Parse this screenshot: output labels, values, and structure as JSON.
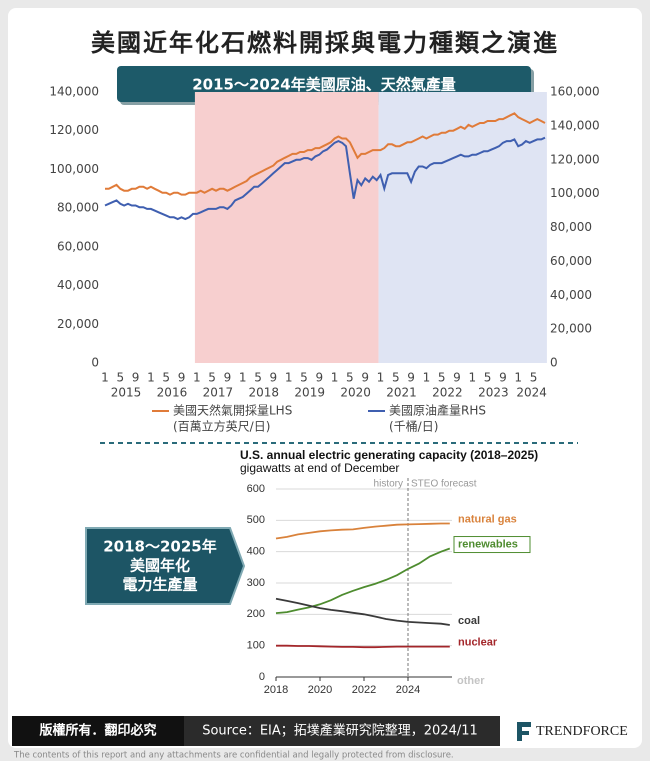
{
  "title": "美國近年化石燃料開採與電力種類之演進",
  "banner": "2015～2024年美國原油、天然氣產量",
  "side_banner": [
    "2018～2025年",
    "美國年化",
    "電力生產量"
  ],
  "chart_data": [
    {
      "type": "line",
      "x": [
        "2015-01",
        "2015-02",
        "2015-03",
        "2015-04",
        "2015-05",
        "2015-06",
        "2015-07",
        "2015-08",
        "2015-09",
        "2015-10",
        "2015-11",
        "2015-12",
        "2016-01",
        "2016-02",
        "2016-03",
        "2016-04",
        "2016-05",
        "2016-06",
        "2016-07",
        "2016-08",
        "2016-09",
        "2016-10",
        "2016-11",
        "2016-12",
        "2017-01",
        "2017-02",
        "2017-03",
        "2017-04",
        "2017-05",
        "2017-06",
        "2017-07",
        "2017-08",
        "2017-09",
        "2017-10",
        "2017-11",
        "2017-12",
        "2018-01",
        "2018-02",
        "2018-03",
        "2018-04",
        "2018-05",
        "2018-06",
        "2018-07",
        "2018-08",
        "2018-09",
        "2018-10",
        "2018-11",
        "2018-12",
        "2019-01",
        "2019-02",
        "2019-03",
        "2019-04",
        "2019-05",
        "2019-06",
        "2019-07",
        "2019-08",
        "2019-09",
        "2019-10",
        "2019-11",
        "2019-12",
        "2020-01",
        "2020-02",
        "2020-03",
        "2020-04",
        "2020-05",
        "2020-06",
        "2020-07",
        "2020-08",
        "2020-09",
        "2020-10",
        "2020-11",
        "2020-12",
        "2021-01",
        "2021-02",
        "2021-03",
        "2021-04",
        "2021-05",
        "2021-06",
        "2021-07",
        "2021-08",
        "2021-09",
        "2021-10",
        "2021-11",
        "2021-12",
        "2022-01",
        "2022-02",
        "2022-03",
        "2022-04",
        "2022-05",
        "2022-06",
        "2022-07",
        "2022-08",
        "2022-09",
        "2022-10",
        "2022-11",
        "2022-12",
        "2023-01",
        "2023-02",
        "2023-03",
        "2023-04",
        "2023-05",
        "2023-06",
        "2023-07",
        "2023-08",
        "2023-09",
        "2023-10",
        "2023-11",
        "2023-12",
        "2024-01",
        "2024-02",
        "2024-03",
        "2024-04",
        "2024-05",
        "2024-06",
        "2024-07",
        "2024-08"
      ],
      "xticks": [
        {
          "value": "2015-01",
          "label": "1"
        },
        {
          "value": "2015-05",
          "label": "5"
        },
        {
          "value": "2015-09",
          "label": "9"
        },
        {
          "value": "2016-01",
          "label": "1"
        },
        {
          "value": "2016-05",
          "label": "5"
        },
        {
          "value": "2016-09",
          "label": "9"
        },
        {
          "value": "2017-01",
          "label": "1"
        },
        {
          "value": "2017-05",
          "label": "5"
        },
        {
          "value": "2017-09",
          "label": "9"
        },
        {
          "value": "2018-01",
          "label": "1"
        },
        {
          "value": "2018-05",
          "label": "5"
        },
        {
          "value": "2018-09",
          "label": "9"
        },
        {
          "value": "2019-01",
          "label": "1"
        },
        {
          "value": "2019-05",
          "label": "5"
        },
        {
          "value": "2019-09",
          "label": "9"
        },
        {
          "value": "2020-01",
          "label": "1"
        },
        {
          "value": "2020-05",
          "label": "5"
        },
        {
          "value": "2020-09",
          "label": "9"
        },
        {
          "value": "2021-01",
          "label": "1"
        },
        {
          "value": "2021-05",
          "label": "5"
        },
        {
          "value": "2021-09",
          "label": "9"
        },
        {
          "value": "2022-01",
          "label": "1"
        },
        {
          "value": "2022-05",
          "label": "5"
        },
        {
          "value": "2022-09",
          "label": "9"
        },
        {
          "value": "2023-01",
          "label": "1"
        },
        {
          "value": "2023-05",
          "label": "5"
        },
        {
          "value": "2023-09",
          "label": "9"
        },
        {
          "value": "2024-01",
          "label": "1"
        },
        {
          "value": "2024-05",
          "label": "5"
        }
      ],
      "xgroups": [
        "2015",
        "2016",
        "2017",
        "2018",
        "2019",
        "2020",
        "2021",
        "2022",
        "2023",
        "2024"
      ],
      "spans": [
        {
          "start": "2017-01",
          "end": "2020-12",
          "color": "#f7cfcf"
        },
        {
          "start": "2021-01",
          "end": "2024-08",
          "color": "#dfe4f3"
        }
      ],
      "ylim": [
        0,
        140000
      ],
      "yticks": [
        0,
        {
          "value": 20000,
          "label": "20,000"
        },
        {
          "value": 40000,
          "label": "40,000"
        },
        {
          "value": 60000,
          "label": "60,000"
        },
        {
          "value": 80000,
          "label": "80,000"
        },
        {
          "value": 100000,
          "label": "100,000"
        },
        {
          "value": 120000,
          "label": "120,000"
        },
        {
          "value": 140000,
          "label": "140,000"
        }
      ],
      "y2lim": [
        0,
        160000
      ],
      "y2ticks": [
        0,
        {
          "value": 20000,
          "label": "20,000"
        },
        {
          "value": 40000,
          "label": "40,000"
        },
        {
          "value": 60000,
          "label": "60,000"
        },
        {
          "value": 80000,
          "label": "80,000"
        },
        {
          "value": 100000,
          "label": "100,000"
        },
        {
          "value": 120000,
          "label": "120,000"
        },
        {
          "value": 140000,
          "label": "140,000"
        },
        {
          "value": 160000,
          "label": "160,000"
        }
      ],
      "grid": false,
      "series": [
        {
          "name": "美國天然氣開採量LHS",
          "unit": "(百萬立方英尺/日)",
          "color": "#e07b39",
          "values": [
            90000,
            90000,
            91000,
            92000,
            90000,
            89000,
            89000,
            90000,
            90000,
            91000,
            91000,
            90000,
            91000,
            90000,
            89000,
            88000,
            88000,
            87000,
            88000,
            88000,
            87000,
            87000,
            88000,
            88000,
            88000,
            89000,
            88000,
            89000,
            90000,
            89000,
            90000,
            90000,
            89000,
            90000,
            91000,
            92000,
            93000,
            94000,
            96000,
            97000,
            98000,
            99000,
            100000,
            101000,
            102000,
            104000,
            105000,
            106000,
            107000,
            108000,
            108000,
            109000,
            109000,
            110000,
            110000,
            111000,
            111000,
            112000,
            113000,
            114000,
            116000,
            117000,
            116000,
            116000,
            114000,
            110000,
            106000,
            108000,
            108000,
            109000,
            110000,
            110000,
            110000,
            111000,
            113000,
            113000,
            112000,
            112000,
            113000,
            114000,
            114000,
            115000,
            116000,
            117000,
            116000,
            117000,
            118000,
            118000,
            119000,
            119000,
            120000,
            120000,
            121000,
            122000,
            121000,
            123000,
            122000,
            123000,
            124000,
            124000,
            125000,
            125000,
            125000,
            126000,
            126000,
            127000,
            128000,
            129000,
            127000,
            126000,
            125000,
            124000,
            125000,
            126000,
            125000,
            124000
          ]
        },
        {
          "name": "美國原油產量RHS",
          "unit": "(千桶/日)",
          "color": "#3f5fb0",
          "axis": "y2",
          "values": [
            93000,
            94000,
            95000,
            96000,
            94000,
            93000,
            94000,
            93000,
            93000,
            92000,
            92000,
            91000,
            91000,
            90000,
            89000,
            88000,
            87000,
            86000,
            86000,
            85000,
            86000,
            85000,
            86000,
            88000,
            88000,
            89000,
            90000,
            91000,
            91000,
            91000,
            92000,
            92000,
            91000,
            93000,
            96000,
            97000,
            98000,
            100000,
            102000,
            104000,
            104000,
            106000,
            108000,
            110000,
            112000,
            114000,
            116000,
            118000,
            118000,
            119000,
            120000,
            120000,
            121000,
            121000,
            120000,
            122000,
            123000,
            125000,
            126000,
            128000,
            130000,
            131000,
            130000,
            128000,
            112000,
            97000,
            108000,
            105000,
            109000,
            107000,
            110000,
            108000,
            111000,
            103000,
            111000,
            112000,
            112000,
            112000,
            112000,
            112000,
            107000,
            113000,
            116000,
            116000,
            115000,
            117000,
            118000,
            118000,
            118000,
            119000,
            120000,
            121000,
            122000,
            123000,
            122000,
            122000,
            123000,
            123000,
            124000,
            125000,
            125000,
            126000,
            127000,
            128000,
            130000,
            131000,
            131000,
            132000,
            128000,
            129000,
            131000,
            130000,
            131000,
            132000,
            132000,
            133000
          ]
        }
      ]
    },
    {
      "type": "line",
      "title": "U.S. annual electric generating capacity (2018–2025)",
      "subtitle": "gigawatts at end of December",
      "x": [
        2018,
        2018.5,
        2019,
        2019.5,
        2020,
        2020.5,
        2021,
        2021.5,
        2022,
        2022.5,
        2023,
        2023.5,
        2024,
        2024.5,
        2025,
        2025.5,
        2025.9
      ],
      "xlim": [
        2018,
        2026
      ],
      "xticks": [
        2018,
        2020,
        2022,
        2024
      ],
      "ylim": [
        0,
        600
      ],
      "yticks": [
        0,
        100,
        200,
        300,
        400,
        500,
        600
      ],
      "grid": true,
      "forecast_start": 2024,
      "annotations": {
        "history": "history",
        "forecast": "STEO forecast",
        "other": "other"
      },
      "series": [
        {
          "name": "natural gas",
          "color": "#d9823b",
          "values": [
            442,
            447,
            455,
            460,
            465,
            468,
            470,
            471,
            476,
            480,
            483,
            486,
            487,
            488,
            489,
            490,
            490
          ]
        },
        {
          "name": "renewables",
          "color": "#4e8c2f",
          "values": [
            204,
            207,
            215,
            222,
            232,
            245,
            262,
            275,
            287,
            297,
            310,
            325,
            345,
            362,
            385,
            400,
            410
          ]
        },
        {
          "name": "coal",
          "color": "#3a3a3a",
          "values": [
            250,
            243,
            236,
            228,
            220,
            214,
            210,
            205,
            200,
            193,
            185,
            180,
            176,
            174,
            172,
            170,
            166
          ]
        },
        {
          "name": "nuclear",
          "color": "#a3262a",
          "values": [
            100,
            100,
            99,
            99,
            98,
            97,
            96,
            96,
            95,
            95,
            96,
            97,
            97,
            97,
            97,
            97,
            97
          ]
        }
      ]
    }
  ],
  "footer": {
    "rights": "版權所有．翻印必究",
    "source": "Source：EIA；拓墣產業研究院整理，2024/11",
    "logo": "TRENDFORCE",
    "disclaimer": "The contents of this report and any attachments are confidential and legally protected from disclosure."
  }
}
